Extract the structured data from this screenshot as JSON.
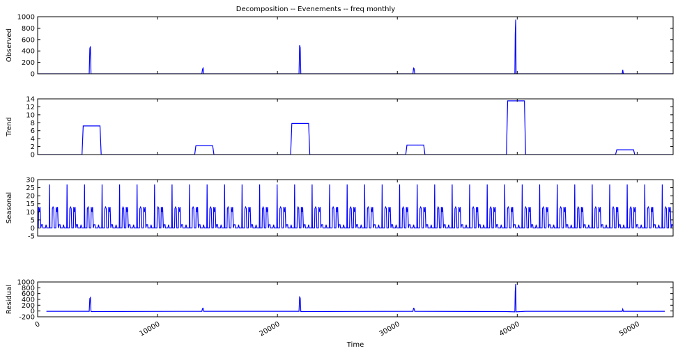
{
  "chart_data": {
    "type": "line",
    "title": "Decomposition -- Evenements -- freq monthly",
    "xlabel": "Time",
    "x_ticks": [
      0,
      10000,
      20000,
      30000,
      40000,
      50000
    ],
    "xlim": [
      0,
      53000
    ],
    "line_color": "#0000ff",
    "panels": [
      {
        "name": "Observed",
        "ylabel": "Observed",
        "ylim": [
          0,
          1000
        ],
        "y_ticks": [
          0,
          200,
          400,
          600,
          800,
          1000
        ],
        "points": [
          [
            0,
            0
          ],
          [
            4300,
            0
          ],
          [
            4350,
            440
          ],
          [
            4400,
            480
          ],
          [
            4450,
            0
          ],
          [
            13700,
            0
          ],
          [
            13750,
            80
          ],
          [
            13800,
            100
          ],
          [
            13850,
            0
          ],
          [
            21800,
            0
          ],
          [
            21850,
            500
          ],
          [
            21900,
            460
          ],
          [
            21950,
            0
          ],
          [
            31300,
            0
          ],
          [
            31350,
            100
          ],
          [
            31400,
            90
          ],
          [
            31450,
            0
          ],
          [
            39800,
            0
          ],
          [
            39830,
            700
          ],
          [
            39870,
            950
          ],
          [
            39900,
            0
          ],
          [
            48750,
            0
          ],
          [
            48800,
            70
          ],
          [
            48850,
            0
          ],
          [
            53000,
            0
          ]
        ]
      },
      {
        "name": "Trend",
        "ylabel": "Trend",
        "ylim": [
          0,
          14
        ],
        "y_ticks": [
          0,
          2,
          4,
          6,
          8,
          10,
          12,
          14
        ],
        "points": [
          [
            0,
            0
          ],
          [
            3700,
            0
          ],
          [
            3800,
            7.2
          ],
          [
            5200,
            7.2
          ],
          [
            5300,
            0
          ],
          [
            13100,
            0
          ],
          [
            13200,
            2.2
          ],
          [
            14600,
            2.2
          ],
          [
            14700,
            0
          ],
          [
            21100,
            0
          ],
          [
            21200,
            7.8
          ],
          [
            22600,
            7.8
          ],
          [
            22700,
            0
          ],
          [
            30700,
            0
          ],
          [
            30800,
            2.4
          ],
          [
            32200,
            2.4
          ],
          [
            32300,
            0
          ],
          [
            39100,
            0
          ],
          [
            39200,
            13.5
          ],
          [
            40600,
            13.5
          ],
          [
            40700,
            0
          ],
          [
            48200,
            0
          ],
          [
            48300,
            1.2
          ],
          [
            49700,
            1.2
          ],
          [
            49800,
            0
          ],
          [
            53000,
            0
          ]
        ]
      },
      {
        "name": "Seasonal",
        "ylabel": "Seasonal",
        "ylim": [
          -5,
          30
        ],
        "y_ticks": [
          -5,
          0,
          5,
          10,
          15,
          20,
          25,
          30
        ],
        "period": 1460,
        "cycles": 37,
        "start": 0,
        "cycle_profile": [
          [
            0,
            0
          ],
          [
            0.04,
            0
          ],
          [
            0.06,
            13
          ],
          [
            0.1,
            10
          ],
          [
            0.14,
            13
          ],
          [
            0.18,
            0
          ],
          [
            0.22,
            2
          ],
          [
            0.28,
            2
          ],
          [
            0.3,
            0
          ],
          [
            0.44,
            0
          ],
          [
            0.48,
            2
          ],
          [
            0.52,
            0
          ],
          [
            0.66,
            0
          ],
          [
            0.68,
            27
          ],
          [
            0.7,
            0
          ],
          [
            0.82,
            0
          ],
          [
            0.84,
            12
          ],
          [
            0.88,
            13
          ],
          [
            0.92,
            12
          ],
          [
            0.95,
            0
          ],
          [
            1.0,
            0
          ]
        ]
      },
      {
        "name": "Residual",
        "ylabel": "Residual",
        "ylim": [
          -200,
          1000
        ],
        "y_ticks": [
          -200,
          0,
          200,
          400,
          600,
          800,
          1000
        ],
        "points": [
          [
            730,
            -10
          ],
          [
            4300,
            -10
          ],
          [
            4350,
            430
          ],
          [
            4400,
            460
          ],
          [
            4450,
            -20
          ],
          [
            13700,
            -10
          ],
          [
            13750,
            80
          ],
          [
            13800,
            95
          ],
          [
            13850,
            -10
          ],
          [
            21800,
            -10
          ],
          [
            21850,
            480
          ],
          [
            21900,
            450
          ],
          [
            21950,
            -20
          ],
          [
            31300,
            -10
          ],
          [
            31350,
            95
          ],
          [
            31400,
            85
          ],
          [
            31450,
            -10
          ],
          [
            39100,
            -20
          ],
          [
            39800,
            -30
          ],
          [
            39830,
            680
          ],
          [
            39870,
            930
          ],
          [
            39900,
            -30
          ],
          [
            40700,
            -10
          ],
          [
            48750,
            -10
          ],
          [
            48800,
            65
          ],
          [
            48850,
            -10
          ],
          [
            52300,
            -10
          ]
        ]
      }
    ]
  }
}
